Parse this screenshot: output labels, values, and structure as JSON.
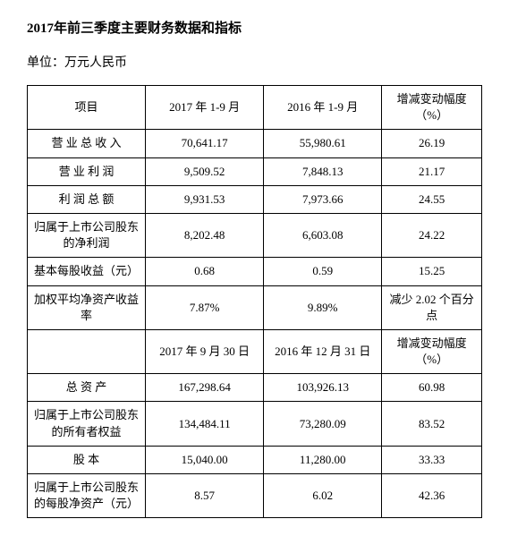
{
  "title": "2017年前三季度主要财务数据和指标",
  "unit": "单位：万元人民币",
  "header1": [
    "项目",
    "2017 年 1-9 月",
    "2016 年 1-9 月",
    "增减变动幅度（%）"
  ],
  "rows1": [
    [
      "营 业 总 收 入",
      "70,641.17",
      "55,980.61",
      "26.19"
    ],
    [
      "营 业 利 润",
      "9,509.52",
      "7,848.13",
      "21.17"
    ],
    [
      "利 润 总 额",
      "9,931.53",
      "7,973.66",
      "24.55"
    ],
    [
      "归属于上市公司股东的净利润",
      "8,202.48",
      "6,603.08",
      "24.22"
    ],
    [
      "基本每股收益（元）",
      "0.68",
      "0.59",
      "15.25"
    ],
    [
      "加权平均净资产收益率",
      "7.87%",
      "9.89%",
      "减少 2.02 个百分点"
    ]
  ],
  "header2": [
    "",
    "2017 年 9 月 30 日",
    "2016 年 12 月 31 日",
    "增减变动幅度（%）"
  ],
  "rows2": [
    [
      "总 资 产",
      "167,298.64",
      "103,926.13",
      "60.98"
    ],
    [
      "归属于上市公司股东的所有者权益",
      "134,484.11",
      "73,280.09",
      "83.52"
    ],
    [
      "股   本",
      "15,040.00",
      "11,280.00",
      "33.33"
    ],
    [
      "归属于上市公司股东的每股净资产（元）",
      "8.57",
      "6.02",
      "42.36"
    ]
  ]
}
